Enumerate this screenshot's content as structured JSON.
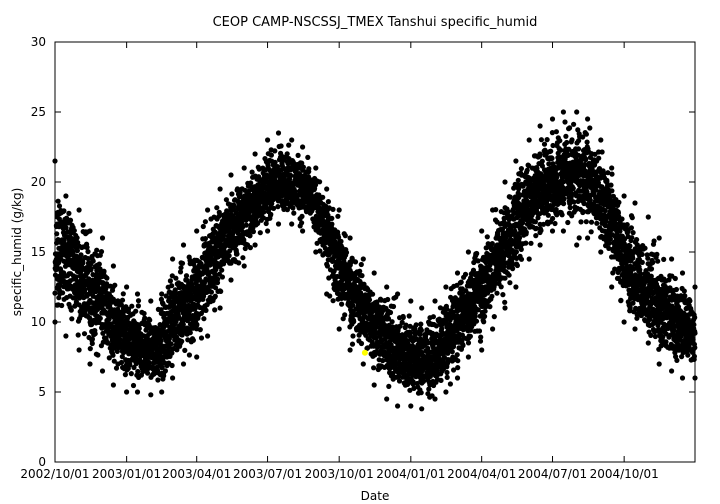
{
  "chart_data": {
    "type": "scatter",
    "title": "CEOP CAMP-NSCSSJ_TMEX Tanshui  specific_humid",
    "xlabel": "Date",
    "ylabel": "specific_humid (g/kg)",
    "xlim": [
      "2002-10-01",
      "2004-12-31"
    ],
    "ylim": [
      0,
      30
    ],
    "x_ticks": [
      "2002/10/01",
      "2003/01/01",
      "2003/04/01",
      "2003/07/01",
      "2003/10/01",
      "2004/01/01",
      "2004/04/01",
      "2004/07/01",
      "2004/10/01"
    ],
    "y_ticks": [
      0,
      5,
      10,
      15,
      20,
      25,
      30
    ],
    "grid": false,
    "marker_color": "#000000",
    "highlight_color": "#ffff00",
    "series": [
      {
        "x": [
          "2002-10-01",
          "2002-10-15",
          "2002-11-01",
          "2002-11-15",
          "2002-12-01",
          "2002-12-15",
          "2003-01-01",
          "2003-01-15",
          "2003-02-01",
          "2003-02-15",
          "2003-03-01",
          "2003-03-15",
          "2003-04-01",
          "2003-04-15",
          "2003-05-01",
          "2003-05-15",
          "2003-06-01",
          "2003-06-15",
          "2003-07-01",
          "2003-07-15",
          "2003-08-01",
          "2003-08-15",
          "2003-09-01",
          "2003-09-15",
          "2003-10-01",
          "2003-10-15",
          "2003-11-01",
          "2003-11-15",
          "2003-12-01",
          "2003-12-15",
          "2004-01-01",
          "2004-01-15",
          "2004-02-01",
          "2004-02-15",
          "2004-03-01",
          "2004-03-15",
          "2004-04-01",
          "2004-04-15",
          "2004-05-01",
          "2004-05-15",
          "2004-06-01",
          "2004-06-15",
          "2004-07-01",
          "2004-07-15",
          "2004-08-01",
          "2004-08-15",
          "2004-09-01",
          "2004-09-15",
          "2004-10-01",
          "2004-10-15",
          "2004-11-01",
          "2004-11-15",
          "2004-12-01",
          "2004-12-15",
          "2004-12-31"
        ],
        "y": [
          14.5,
          15.0,
          13.5,
          12.5,
          11.5,
          10.0,
          9.0,
          8.5,
          8.0,
          8.5,
          10.0,
          10.5,
          12.0,
          14.0,
          15.5,
          16.5,
          17.5,
          18.5,
          19.5,
          20.0,
          20.0,
          19.5,
          18.5,
          16.5,
          14.5,
          12.5,
          11.0,
          10.0,
          9.0,
          8.0,
          7.5,
          7.0,
          7.5,
          8.5,
          10.0,
          11.0,
          12.5,
          14.0,
          15.5,
          17.0,
          19.0,
          19.5,
          20.0,
          20.5,
          20.5,
          20.0,
          19.5,
          17.5,
          14.5,
          13.0,
          12.0,
          11.0,
          10.5,
          10.0,
          9.0
        ],
        "ymin": [
          10.0,
          9.0,
          8.0,
          7.0,
          6.5,
          5.5,
          5.0,
          5.0,
          4.8,
          5.0,
          6.0,
          7.0,
          7.5,
          9.0,
          11.0,
          13.0,
          14.0,
          15.5,
          16.5,
          17.0,
          17.0,
          16.5,
          15.0,
          12.0,
          9.5,
          8.0,
          7.0,
          5.5,
          4.5,
          4.0,
          4.0,
          3.8,
          4.5,
          5.0,
          6.0,
          7.5,
          8.0,
          9.5,
          11.0,
          12.5,
          14.5,
          15.5,
          16.5,
          16.5,
          15.5,
          16.0,
          15.0,
          12.5,
          10.0,
          9.5,
          8.5,
          7.0,
          6.5,
          6.0,
          6.0
        ],
        "ymax": [
          21.5,
          19.0,
          18.0,
          16.5,
          16.0,
          14.0,
          12.5,
          12.0,
          11.5,
          12.0,
          14.5,
          15.5,
          16.5,
          18.0,
          19.5,
          20.5,
          21.0,
          22.0,
          23.0,
          23.5,
          23.0,
          22.5,
          21.0,
          19.5,
          18.0,
          16.0,
          14.5,
          13.5,
          12.5,
          12.0,
          11.5,
          11.0,
          11.5,
          12.5,
          13.5,
          15.0,
          16.5,
          18.0,
          20.0,
          21.5,
          23.0,
          24.0,
          24.5,
          25.0,
          25.0,
          24.5,
          23.0,
          21.0,
          19.0,
          18.5,
          17.5,
          16.0,
          14.5,
          13.5,
          12.5
        ]
      },
      {
        "x": [
          "2003-11-03"
        ],
        "y": [
          7.8
        ],
        "highlight": true
      }
    ]
  }
}
